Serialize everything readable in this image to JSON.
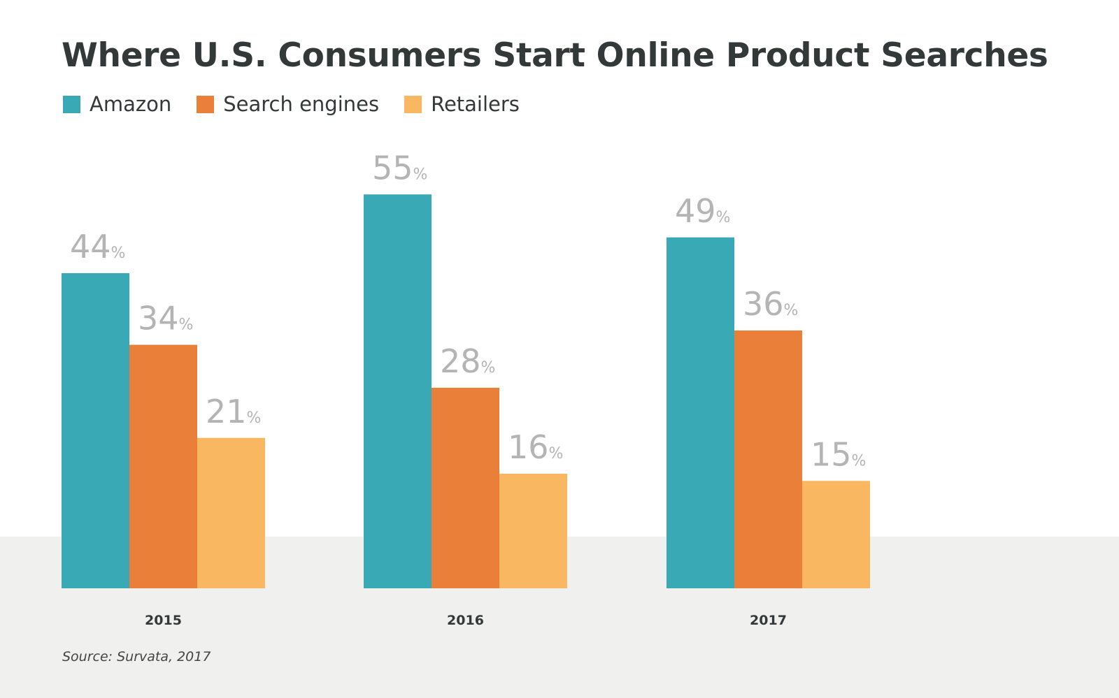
{
  "chart_data": {
    "type": "bar",
    "title": "Where U.S. Consumers Start Online Product Searches",
    "categories": [
      "2015",
      "2016",
      "2017"
    ],
    "series": [
      {
        "name": "Amazon",
        "color": "#3aa9b6",
        "values": [
          44,
          55,
          49
        ]
      },
      {
        "name": "Search engines",
        "color": "#e97f39",
        "values": [
          34,
          28,
          36
        ]
      },
      {
        "name": "Retailers",
        "color": "#f9b761",
        "values": [
          21,
          16,
          15
        ]
      }
    ],
    "value_suffix": "%",
    "xlabel": "",
    "ylabel": "",
    "ylim": [
      0,
      55
    ],
    "grid": false,
    "legend": "top-left"
  },
  "source": "Source: Survata, 2017"
}
